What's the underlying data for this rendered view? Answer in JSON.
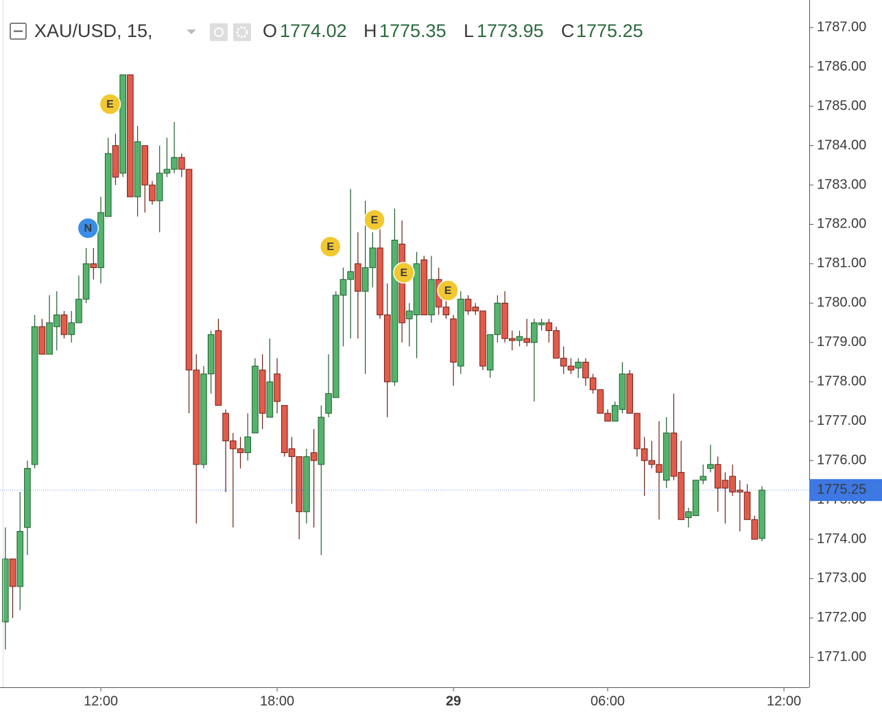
{
  "chart_data": {
    "type": "candlestick",
    "title": "XAU/USD, 15,",
    "ohlc_labels": [
      "O",
      "H",
      "L",
      "C"
    ],
    "events": [
      "E",
      "N",
      "E",
      "E",
      "E",
      "E"
    ],
    "categories": [
      null,
      null,
      null,
      null,
      null,
      null,
      null,
      null,
      null,
      null,
      null,
      null,
      null,
      "12:00",
      null,
      null,
      null,
      null,
      null,
      null,
      null,
      null,
      null,
      null,
      null,
      null,
      null,
      null,
      null,
      null,
      null,
      null,
      null,
      null,
      null,
      null,
      null,
      "18:00",
      null,
      null,
      null,
      null,
      null,
      null,
      null,
      null,
      null,
      null,
      null,
      null,
      null,
      null,
      null,
      null,
      null,
      null,
      null,
      null,
      null,
      null,
      null,
      "29",
      null,
      null,
      null,
      null,
      null,
      null,
      null,
      null,
      null,
      null,
      null,
      null,
      null,
      null,
      null,
      null,
      null,
      null,
      null,
      null,
      "06:00",
      null,
      null,
      null,
      null,
      null,
      null,
      null,
      null,
      null,
      null,
      null,
      null,
      null,
      null,
      null,
      null,
      null,
      null,
      null,
      null,
      null,
      null,
      null,
      "12:00"
    ],
    "open": [
      1771.9,
      1773.5,
      1772.8,
      1774.3,
      1775.9,
      1779.4,
      1778.7,
      1779.4,
      1779.7,
      1779.2,
      1779.5,
      1780.1,
      1781.0,
      1780.9,
      1782.2,
      1784.0,
      1783.3,
      1785.8,
      1782.7,
      1784.0,
      1783.0,
      1782.6,
      1783.3,
      1783.4,
      1783.7,
      1783.4,
      1778.3,
      1775.9,
      1778.2,
      1779.3,
      1777.2,
      1776.5,
      1776.3,
      1776.2,
      1776.7,
      1778.3,
      1777.1,
      1778.2,
      1777.4,
      1776.3,
      1776.1,
      1774.7,
      1776.2,
      1775.9,
      1777.2,
      1777.6,
      1780.2,
      1780.6,
      1781.0,
      1780.3,
      1780.9,
      1781.4,
      1779.7,
      1778.0,
      1781.5,
      1779.6,
      1779.7,
      1781.1,
      1779.7,
      1780.6,
      1779.9,
      1779.6,
      1778.4,
      1780.1,
      1779.9,
      1779.8,
      1778.3,
      1779.2,
      1780.0,
      1779.1,
      1779.05,
      1779.1,
      1779.0,
      1779.45,
      1779.5,
      1779.3,
      1778.6,
      1778.4,
      1778.35,
      1778.5,
      1778.1,
      1777.8,
      1777.2,
      1777.0,
      1777.3,
      1778.2,
      1777.2,
      1776.3,
      1776.0,
      1775.9,
      1775.5,
      1776.7,
      1775.7,
      1774.55,
      1774.6,
      1775.5,
      1775.8,
      1775.9,
      1775.5,
      1775.6,
      1775.25,
      1775.2,
      1774.5,
      1774.02,
      null,
      null,
      null
    ],
    "high": [
      1774.3,
      1773.5,
      1775.2,
      1776.0,
      1779.7,
      1779.6,
      1780.2,
      1780.3,
      1779.8,
      1779.8,
      1780.7,
      1781.4,
      1781.4,
      1782.7,
      1784.2,
      1784.3,
      1785.8,
      1785.8,
      1784.5,
      1784.0,
      1783.1,
      1784.0,
      1784.2,
      1784.6,
      1783.8,
      1783.4,
      1778.7,
      1778.4,
      1779.3,
      1779.6,
      1777.3,
      1776.7,
      1776.6,
      1777.2,
      1778.6,
      1778.7,
      1779.1,
      1778.6,
      1777.4,
      1776.6,
      1776.1,
      1776.3,
      1776.8,
      1777.4,
      1778.7,
      1780.3,
      1780.9,
      1782.9,
      1781.8,
      1782.6,
      1781.8,
      1782.0,
      1780.5,
      1782.4,
      1782.1,
      1780.0,
      1781.3,
      1781.2,
      1781.2,
      1780.9,
      1780.1,
      1779.7,
      1780.3,
      1780.2,
      1780.0,
      1779.8,
      1779.2,
      1780.2,
      1780.3,
      1779.3,
      1779.3,
      1779.6,
      1779.6,
      1779.6,
      1779.6,
      1779.4,
      1778.9,
      1778.6,
      1778.6,
      1778.6,
      1778.2,
      1777.8,
      1777.3,
      1777.5,
      1778.5,
      1778.3,
      1777.2,
      1776.6,
      1776.5,
      1777.0,
      1777.1,
      1777.7,
      1776.5,
      1774.8,
      1775.5,
      1775.9,
      1776.4,
      1776.1,
      1775.7,
      1775.9,
      1775.5,
      1775.4,
      1774.6,
      1775.35,
      null,
      null,
      null
    ],
    "low": [
      1771.2,
      1772.0,
      1772.2,
      1773.6,
      1775.8,
      1778.7,
      1778.7,
      1778.8,
      1779.1,
      1779.0,
      1779.5,
      1780.0,
      1780.6,
      1780.5,
      1782.2,
      1783.0,
      1783.2,
      1782.7,
      1782.2,
      1782.3,
      1782.5,
      1781.8,
      1783.2,
      1783.3,
      1783.2,
      1777.2,
      1774.4,
      1775.8,
      1777.7,
      1777.4,
      1775.2,
      1774.3,
      1775.8,
      1776.0,
      1776.7,
      1776.8,
      1777.1,
      1777.2,
      1776.1,
      1774.9,
      1774.0,
      1774.4,
      1774.3,
      1773.6,
      1777.1,
      1777.6,
      1778.9,
      1779.1,
      1779.1,
      1778.2,
      1780.4,
      1779.6,
      1777.1,
      1777.9,
      1779.0,
      1778.9,
      1778.6,
      1779.7,
      1779.5,
      1779.7,
      1779.6,
      1777.9,
      1778.2,
      1779.7,
      1779.7,
      1778.3,
      1778.1,
      1779.0,
      1779.0,
      1778.8,
      1778.9,
      1778.9,
      1777.5,
      1779.3,
      1779.0,
      1778.6,
      1778.2,
      1778.2,
      1778.1,
      1777.9,
      1777.7,
      1777.2,
      1777.0,
      1777.0,
      1777.2,
      1777.2,
      1776.1,
      1775.1,
      1775.8,
      1774.5,
      1775.3,
      1775.5,
      1774.5,
      1774.3,
      1774.6,
      1775.4,
      1775.7,
      1774.7,
      1774.4,
      1775.1,
      1774.2,
      1774.5,
      1774.0,
      1773.95,
      null,
      null,
      null
    ],
    "close": [
      1773.5,
      1772.8,
      1774.2,
      1775.8,
      1779.4,
      1778.7,
      1779.5,
      1779.7,
      1779.2,
      1779.5,
      1780.1,
      1781.0,
      1780.9,
      1782.3,
      1783.8,
      1783.2,
      1785.8,
      1782.7,
      1784.1,
      1783.0,
      1782.6,
      1783.3,
      1783.4,
      1783.7,
      1783.4,
      1778.3,
      1775.9,
      1778.2,
      1779.2,
      1777.4,
      1776.5,
      1776.3,
      1776.2,
      1776.6,
      1778.4,
      1777.2,
      1778.0,
      1777.5,
      1776.2,
      1776.1,
      1774.7,
      1776.1,
      1776.0,
      1777.1,
      1777.7,
      1780.2,
      1780.6,
      1780.8,
      1780.3,
      1780.9,
      1781.4,
      1779.7,
      1778.0,
      1781.6,
      1779.5,
      1779.8,
      1781.0,
      1779.7,
      1780.6,
      1779.9,
      1779.7,
      1778.5,
      1780.1,
      1779.8,
      1779.8,
      1778.4,
      1779.2,
      1780.0,
      1779.1,
      1779.05,
      1779.15,
      1779.0,
      1779.5,
      1779.5,
      1779.3,
      1778.6,
      1778.4,
      1778.3,
      1778.5,
      1778.1,
      1777.8,
      1777.2,
      1777.0,
      1777.4,
      1778.2,
      1777.2,
      1776.3,
      1776.0,
      1775.9,
      1775.7,
      1776.7,
      1775.6,
      1774.5,
      1774.7,
      1775.5,
      1775.6,
      1775.9,
      1775.3,
      1775.3,
      1775.2,
      1775.2,
      1774.5,
      1774.0,
      1775.25,
      null,
      null,
      null
    ],
    "ylim": [
      1770.24,
      1787.7
    ],
    "yticks": [
      {
        "value": 1771,
        "label": "1771.00"
      },
      {
        "value": 1772,
        "label": "1772.00"
      },
      {
        "value": 1773,
        "label": "1773.00"
      },
      {
        "value": 1774,
        "label": "1774.00"
      },
      {
        "value": 1775,
        "label": "1775.00"
      },
      {
        "value": 1776,
        "label": "1776.00"
      },
      {
        "value": 1777,
        "label": "1777.00"
      },
      {
        "value": 1778,
        "label": "1778.00"
      },
      {
        "value": 1779,
        "label": "1779.00"
      },
      {
        "value": 1780,
        "label": "1780.00"
      },
      {
        "value": 1781,
        "label": "1781.00"
      },
      {
        "value": 1782,
        "label": "1782.00"
      },
      {
        "value": 1783,
        "label": "1783.00"
      },
      {
        "value": 1784,
        "label": "1784.00"
      },
      {
        "value": 1785,
        "label": "1785.00"
      },
      {
        "value": 1786,
        "label": "1786.00"
      },
      {
        "value": 1787,
        "label": "1787.00"
      }
    ],
    "grid": false,
    "up_color": "#55b46c",
    "down_color": "#e35b4b",
    "up_border": "#1f5a2d",
    "down_border": "#6b1d13",
    "last_price_color": "#3d78e3"
  }
}
